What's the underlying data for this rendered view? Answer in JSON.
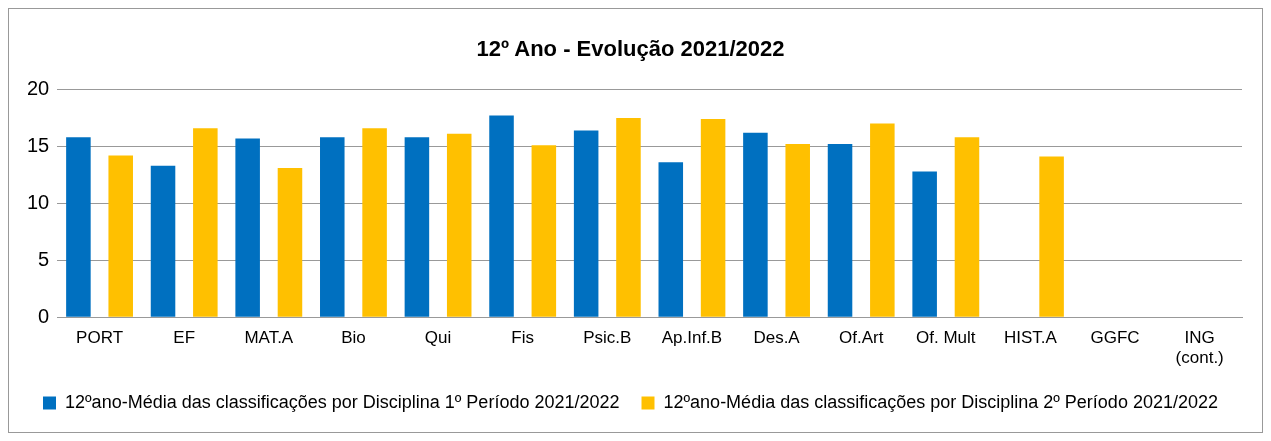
{
  "chart_data": {
    "type": "bar",
    "title": "12º Ano - Evolução 2021/2022",
    "categories": [
      "PORT",
      "EF",
      "MAT.A",
      "Bio",
      "Qui",
      "Fis",
      "Psic.B",
      "Ap.Inf.B",
      "Des.A",
      "Of.Art",
      "Of. Mult",
      "HIST.A",
      "GGFC",
      "ING (cont.)"
    ],
    "series": [
      {
        "name": "12ºano-Média das classificações por Disciplina 1º Período 2021/2022",
        "color": "#0070c0",
        "values": [
          15.8,
          13.3,
          15.7,
          15.8,
          15.8,
          17.7,
          16.4,
          13.6,
          16.2,
          15.2,
          12.8,
          null,
          null,
          null
        ]
      },
      {
        "name": "12ºano-Média das classificações por Disciplina 2º Período 2021/2022",
        "color": "#ffc000",
        "values": [
          14.2,
          16.6,
          13.1,
          16.6,
          16.1,
          15.1,
          17.5,
          17.4,
          15.2,
          17.0,
          15.8,
          14.1,
          null,
          null
        ]
      }
    ],
    "ylim": [
      0,
      20
    ],
    "yticks": [
      0,
      5,
      10,
      15,
      20
    ],
    "grid": "y",
    "legend": "bottom"
  }
}
